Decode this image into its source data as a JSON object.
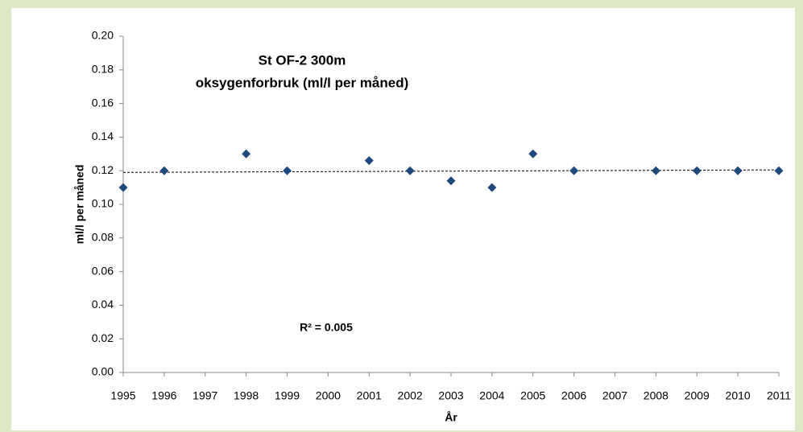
{
  "chart_data": {
    "type": "scatter",
    "title": "St OF-2 300m",
    "subtitle": "oksygenforbruk (ml/l per måned)",
    "y_label": "ml/l per måned",
    "x_label": "År",
    "annotation": "R² = 0.005",
    "x": [
      1995,
      1996,
      1998,
      1999,
      2001,
      2002,
      2003,
      2004,
      2005,
      2006,
      2008,
      2009,
      2010,
      2011
    ],
    "values": [
      0.11,
      0.12,
      0.13,
      0.12,
      0.126,
      0.12,
      0.114,
      0.11,
      0.13,
      0.12,
      0.12,
      0.12,
      0.12,
      0.12
    ],
    "color": "#1f497d",
    "trendline": {
      "x": [
        1995,
        2011
      ],
      "values": [
        0.119,
        0.1205
      ],
      "color": "#000000"
    },
    "xlim": [
      1995,
      2011
    ],
    "xticks": [
      1995,
      1996,
      1997,
      1998,
      1999,
      2000,
      2001,
      2002,
      2003,
      2004,
      2005,
      2006,
      2007,
      2008,
      2009,
      2010,
      2011
    ],
    "ylim": [
      0,
      0.2
    ],
    "yticks": [
      {
        "value": 0,
        "label": "0.00"
      },
      {
        "value": 0.02,
        "label": "0.02"
      },
      {
        "value": 0.04,
        "label": "0.04"
      },
      {
        "value": 0.06,
        "label": "0.06"
      },
      {
        "value": 0.08,
        "label": "0.08"
      },
      {
        "value": 0.1,
        "label": "0.10"
      },
      {
        "value": 0.12,
        "label": "0.12"
      },
      {
        "value": 0.14,
        "label": "0.14"
      },
      {
        "value": 0.16,
        "label": "0.16"
      },
      {
        "value": 0.18,
        "label": "0.18"
      },
      {
        "value": 0.2,
        "label": "0.20"
      }
    ],
    "grid": false
  }
}
